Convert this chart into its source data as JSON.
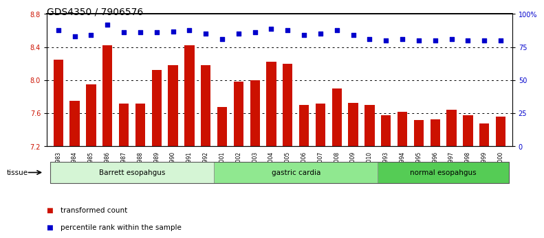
{
  "title": "GDS4350 / 7906576",
  "samples": [
    "GSM851983",
    "GSM851984",
    "GSM851985",
    "GSM851986",
    "GSM851987",
    "GSM851988",
    "GSM851989",
    "GSM851990",
    "GSM851991",
    "GSM851992",
    "GSM852001",
    "GSM852002",
    "GSM852003",
    "GSM852004",
    "GSM852005",
    "GSM852006",
    "GSM852007",
    "GSM852008",
    "GSM852009",
    "GSM852010",
    "GSM851993",
    "GSM851994",
    "GSM851995",
    "GSM851996",
    "GSM851997",
    "GSM851998",
    "GSM851999",
    "GSM852000"
  ],
  "bar_values": [
    8.25,
    7.75,
    7.95,
    8.42,
    7.72,
    7.72,
    8.12,
    8.18,
    8.42,
    8.18,
    7.68,
    7.98,
    8.0,
    8.22,
    8.2,
    7.7,
    7.72,
    7.9,
    7.73,
    7.7,
    7.58,
    7.62,
    7.52,
    7.53,
    7.64,
    7.58,
    7.48,
    7.56
  ],
  "percentile_values": [
    88,
    83,
    84,
    92,
    86,
    86,
    86,
    87,
    88,
    85,
    81,
    85,
    86,
    89,
    88,
    84,
    85,
    88,
    84,
    81,
    80,
    81,
    80,
    80,
    81,
    80,
    80,
    80
  ],
  "bar_color": "#cc1100",
  "dot_color": "#0000cc",
  "ylim_left": [
    7.2,
    8.8
  ],
  "ylim_right": [
    0,
    100
  ],
  "yticks_left": [
    7.2,
    7.6,
    8.0,
    8.4,
    8.8
  ],
  "yticks_right": [
    0,
    25,
    50,
    75,
    100
  ],
  "ytick_labels_right": [
    "0",
    "25",
    "50",
    "75",
    "100%"
  ],
  "groups": [
    {
      "label": "Barrett esopahgus",
      "start": 0,
      "end": 10,
      "color": "#d5f5d5"
    },
    {
      "label": "gastric cardia",
      "start": 10,
      "end": 20,
      "color": "#90e890"
    },
    {
      "label": "normal esopahgus",
      "start": 20,
      "end": 28,
      "color": "#55cc55"
    }
  ],
  "tissue_label": "tissue",
  "legend": [
    {
      "label": "transformed count",
      "color": "#cc1100"
    },
    {
      "label": "percentile rank within the sample",
      "color": "#0000cc"
    }
  ],
  "background_color": "#ffffff",
  "title_fontsize": 10,
  "tick_fontsize": 7,
  "bar_bottom": 7.2
}
